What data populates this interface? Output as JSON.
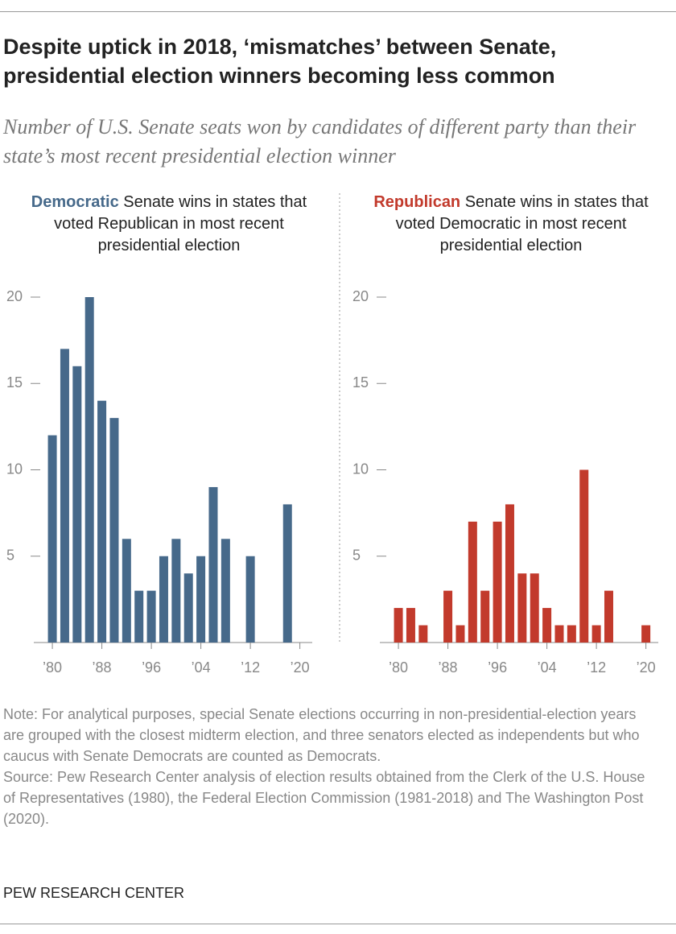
{
  "title": "Despite uptick in 2018, ‘mismatches’ between Senate, presidential election winners becoming less common",
  "subtitle": "Number of U.S. Senate seats won by candidates of different party than their state’s most recent presidential election winner",
  "note": "Note: For analytical purposes, special Senate elections occurring in non-presidential-election years are grouped with the closest midterm election, and three senators elected as independents but who caucus with Senate Democrats are counted as Democrats.",
  "source": "Source: Pew Research Center analysis of election results obtained from the Clerk of the U.S. House of Representatives (1980), the Federal Election Commission (1981-2018) and The Washington Post (2020).",
  "organization": "PEW RESEARCH CENTER",
  "chart_data": [
    {
      "type": "bar",
      "title_party": "Democratic",
      "title": "Senate wins in states that voted Republican in most recent presidential election",
      "x": [
        1980,
        1982,
        1984,
        1986,
        1988,
        1990,
        1992,
        1994,
        1996,
        1998,
        2000,
        2002,
        2004,
        2006,
        2008,
        2010,
        2012,
        2014,
        2016,
        2018,
        2020
      ],
      "values": [
        12,
        17,
        16,
        20,
        14,
        13,
        6,
        3,
        3,
        5,
        6,
        4,
        5,
        9,
        6,
        0,
        5,
        0,
        0,
        8,
        0
      ],
      "color": "#46698a",
      "xlim": [
        1977,
        2022
      ],
      "xticks": [
        {
          "value": 1980,
          "label": "’80"
        },
        {
          "value": 1988,
          "label": "’88"
        },
        {
          "value": 1996,
          "label": "’96"
        },
        {
          "value": 2004,
          "label": "’04"
        },
        {
          "value": 2012,
          "label": "’12"
        },
        {
          "value": 2020,
          "label": "’20"
        }
      ],
      "ylim": [
        0,
        20
      ],
      "yticks": [
        5,
        10,
        15,
        20
      ]
    },
    {
      "type": "bar",
      "title_party": "Republican",
      "title": "Senate wins in states that voted Democratic in most recent presidential election",
      "x": [
        1980,
        1982,
        1984,
        1986,
        1988,
        1990,
        1992,
        1994,
        1996,
        1998,
        2000,
        2002,
        2004,
        2006,
        2008,
        2010,
        2012,
        2014,
        2016,
        2018,
        2020
      ],
      "values": [
        2,
        2,
        1,
        0,
        3,
        1,
        7,
        3,
        7,
        8,
        4,
        4,
        2,
        1,
        1,
        10,
        1,
        3,
        0,
        0,
        1
      ],
      "color": "#c23a2c",
      "xlim": [
        1977,
        2022
      ],
      "xticks": [
        {
          "value": 1980,
          "label": "’80"
        },
        {
          "value": 1988,
          "label": "’88"
        },
        {
          "value": 1996,
          "label": "’96"
        },
        {
          "value": 2004,
          "label": "’04"
        },
        {
          "value": 2012,
          "label": "’12"
        },
        {
          "value": 2020,
          "label": "’20"
        }
      ],
      "ylim": [
        0,
        20
      ],
      "yticks": [
        5,
        10,
        15,
        20
      ]
    }
  ]
}
